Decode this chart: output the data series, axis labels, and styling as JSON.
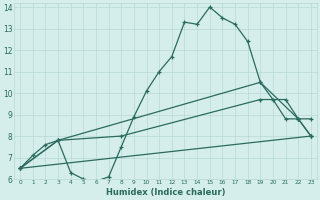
{
  "xlabel": "Humidex (Indice chaleur)",
  "xlim": [
    -0.5,
    23.5
  ],
  "ylim": [
    6,
    14.2
  ],
  "xticks": [
    0,
    1,
    2,
    3,
    4,
    5,
    6,
    7,
    8,
    9,
    10,
    11,
    12,
    13,
    14,
    15,
    16,
    17,
    18,
    19,
    20,
    21,
    22,
    23
  ],
  "yticks": [
    6,
    7,
    8,
    9,
    10,
    11,
    12,
    13,
    14
  ],
  "bg_color": "#d5eeeb",
  "grid_color": "#b8d8d4",
  "line_color": "#2a6b5e",
  "series": [
    {
      "x": [
        0,
        1,
        2,
        3,
        4,
        5,
        6,
        7,
        8,
        9,
        10,
        11,
        12,
        13,
        14,
        15,
        16,
        17,
        18,
        19,
        20,
        21,
        22,
        23
      ],
      "y": [
        6.5,
        7.1,
        7.6,
        7.8,
        6.3,
        6.0,
        5.9,
        6.1,
        7.5,
        8.9,
        10.1,
        11.0,
        11.7,
        13.3,
        13.2,
        14.0,
        13.5,
        13.2,
        12.4,
        10.5,
        9.7,
        8.8,
        8.8,
        8.0
      ]
    },
    {
      "x": [
        0,
        3,
        19,
        22,
        23
      ],
      "y": [
        6.5,
        7.8,
        10.5,
        8.8,
        8.0
      ]
    },
    {
      "x": [
        0,
        3,
        8,
        19,
        21,
        22,
        23
      ],
      "y": [
        6.5,
        7.8,
        8.0,
        9.7,
        9.7,
        8.8,
        8.8
      ]
    },
    {
      "x": [
        0,
        23
      ],
      "y": [
        6.5,
        8.0
      ]
    }
  ]
}
